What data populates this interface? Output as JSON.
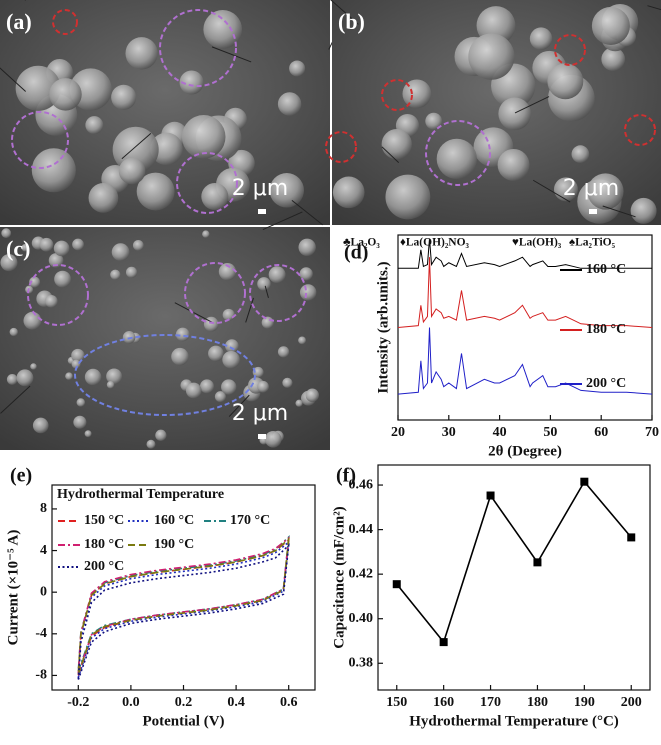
{
  "images": [
    {
      "label": "(a)",
      "scale_bar": "2 μm"
    },
    {
      "label": "(b)",
      "scale_bar": "2 μm"
    },
    {
      "label": "(c)",
      "scale_bar": "2 μm"
    }
  ],
  "chart_data": [
    {
      "type": "line",
      "panel_label": "(d)",
      "xlabel": "2θ (Degree)",
      "ylabel": "Intensity (arb.units.)",
      "annotations": [
        "♣La₂O₃",
        "♦La(OH)₂NO₃",
        "♥La(OH)₃",
        "♠La₂TiO₅"
      ],
      "xlim": [
        20,
        70
      ],
      "xticks": [
        20,
        30,
        40,
        50,
        60,
        70
      ],
      "ylim": [
        0,
        100
      ],
      "x": [
        20,
        24,
        24.5,
        25,
        25.8,
        26.2,
        26.6,
        27.5,
        28.5,
        29,
        30,
        31.5,
        32.5,
        33.5,
        37,
        39,
        40,
        43,
        44.5,
        46,
        46.5,
        48.5,
        49.5,
        51,
        53,
        54.5,
        56,
        60,
        65,
        70
      ],
      "series": [
        {
          "name": "160 °C",
          "color": "#000000",
          "values": [
            82,
            82,
            92,
            83,
            84,
            98,
            84,
            88,
            86,
            83,
            85,
            83,
            90,
            83,
            85,
            84,
            83,
            86,
            88,
            83,
            84,
            86,
            83,
            83,
            84,
            83,
            82,
            82,
            82,
            82
          ]
        },
        {
          "name": "180 °C",
          "color": "#d42020",
          "values": [
            50,
            51,
            62,
            53,
            56,
            88,
            56,
            60,
            58,
            55,
            56,
            54,
            70,
            54,
            56,
            55,
            54,
            58,
            62,
            55,
            56,
            58,
            54,
            54,
            56,
            54,
            52,
            51,
            51,
            50
          ]
        },
        {
          "name": "200 °C",
          "color": "#2020c8",
          "values": [
            14,
            15,
            32,
            17,
            20,
            50,
            20,
            26,
            22,
            18,
            20,
            17,
            36,
            17,
            22,
            20,
            20,
            24,
            30,
            18,
            20,
            24,
            18,
            18,
            20,
            18,
            16,
            15,
            15,
            14
          ]
        }
      ]
    },
    {
      "type": "line",
      "panel_label": "(e)",
      "xlabel": "Potential (V)",
      "ylabel": "Current (×10⁻⁵ A)",
      "legend_title": "Hydrothermal Temperature",
      "xlim": [
        -0.3,
        0.7
      ],
      "xticks": [
        -0.2,
        {
          "value": 0,
          "label": "0.0"
        },
        0.2,
        0.4,
        0.6
      ],
      "ylim": [
        -9.4,
        10.3
      ],
      "yticks": [
        -8,
        -4,
        0,
        4,
        8
      ],
      "x": [
        -0.2,
        -0.15,
        -0.1,
        0,
        0.1,
        0.2,
        0.3,
        0.4,
        0.5,
        0.58,
        0.6,
        0.55,
        0.5,
        0.4,
        0.3,
        0.2,
        0.1,
        0,
        -0.1,
        -0.15,
        -0.19,
        -0.2
      ],
      "series": [
        {
          "name": "150 °C",
          "color": "#e02020",
          "linestyle": "dashed",
          "values": [
            -8,
            -4.2,
            -3.4,
            -2.7,
            -2.3,
            -2.0,
            -1.7,
            -1.3,
            -0.8,
            0.2,
            5,
            4.0,
            3.5,
            2.9,
            2.5,
            2.2,
            1.9,
            1.5,
            0.8,
            -0.3,
            -4,
            -8
          ]
        },
        {
          "name": "160 °C",
          "color": "#2030c0",
          "linestyle": "dotted",
          "values": [
            -8.2,
            -4.4,
            -3.5,
            -2.8,
            -2.4,
            -2.1,
            -1.8,
            -1.4,
            -0.9,
            0.1,
            4.8,
            3.8,
            3.3,
            2.7,
            2.3,
            2.0,
            1.7,
            1.3,
            0.6,
            -0.5,
            -4.2,
            -8.2
          ]
        },
        {
          "name": "170 °C",
          "color": "#208080",
          "linestyle": "dashdot",
          "values": [
            -7.6,
            -4.0,
            -3.2,
            -2.6,
            -2.2,
            -1.9,
            -1.6,
            -1.2,
            -0.7,
            0.3,
            5.3,
            4.1,
            3.6,
            3.0,
            2.6,
            2.3,
            2.0,
            1.6,
            0.9,
            -0.2,
            -3.8,
            -7.6
          ]
        },
        {
          "name": "180 °C",
          "color": "#d02070",
          "linestyle": "dashdot",
          "values": [
            -7.8,
            -4.1,
            -3.3,
            -2.6,
            -2.2,
            -1.9,
            -1.6,
            -1.2,
            -0.7,
            0.3,
            5.2,
            4.2,
            3.7,
            3.1,
            2.7,
            2.4,
            2.1,
            1.7,
            1.0,
            -0.1,
            -3.9,
            -7.8
          ]
        },
        {
          "name": "190 °C",
          "color": "#7a7a10",
          "linestyle": "dashed",
          "values": [
            -7.9,
            -4.1,
            -3.3,
            -2.7,
            -2.3,
            -2.0,
            -1.7,
            -1.3,
            -0.8,
            0.2,
            5.1,
            4.0,
            3.5,
            2.9,
            2.5,
            2.2,
            1.9,
            1.5,
            0.8,
            -0.3,
            -4,
            -7.9
          ]
        },
        {
          "name": "200 °C",
          "color": "#101080",
          "linestyle": "dotted",
          "values": [
            -8.4,
            -4.8,
            -3.8,
            -3.0,
            -2.6,
            -2.3,
            -2.0,
            -1.6,
            -1.1,
            -0.2,
            4.5,
            3.3,
            2.9,
            2.3,
            1.9,
            1.6,
            1.3,
            0.9,
            0.2,
            -1.0,
            -4.8,
            -8.4
          ]
        }
      ]
    },
    {
      "type": "line",
      "panel_label": "(f)",
      "xlabel": "Hydrothermal Temperature (°C)",
      "ylabel": "Capacitance (mF/cm²)",
      "marker": "square",
      "xlim": [
        146,
        204
      ],
      "xticks": [
        150,
        160,
        170,
        180,
        190,
        200
      ],
      "ylim": [
        0.368,
        0.469
      ],
      "yticks": [
        0.38,
        {
          "value": 0.4,
          "label": "0.40"
        },
        0.42,
        0.44,
        0.46
      ],
      "x": [
        150,
        160,
        170,
        180,
        190,
        200
      ],
      "series": [
        {
          "color": "#000000",
          "values": [
            0.4155,
            0.3895,
            0.4553,
            0.4253,
            0.4615,
            0.4365
          ]
        }
      ]
    }
  ]
}
